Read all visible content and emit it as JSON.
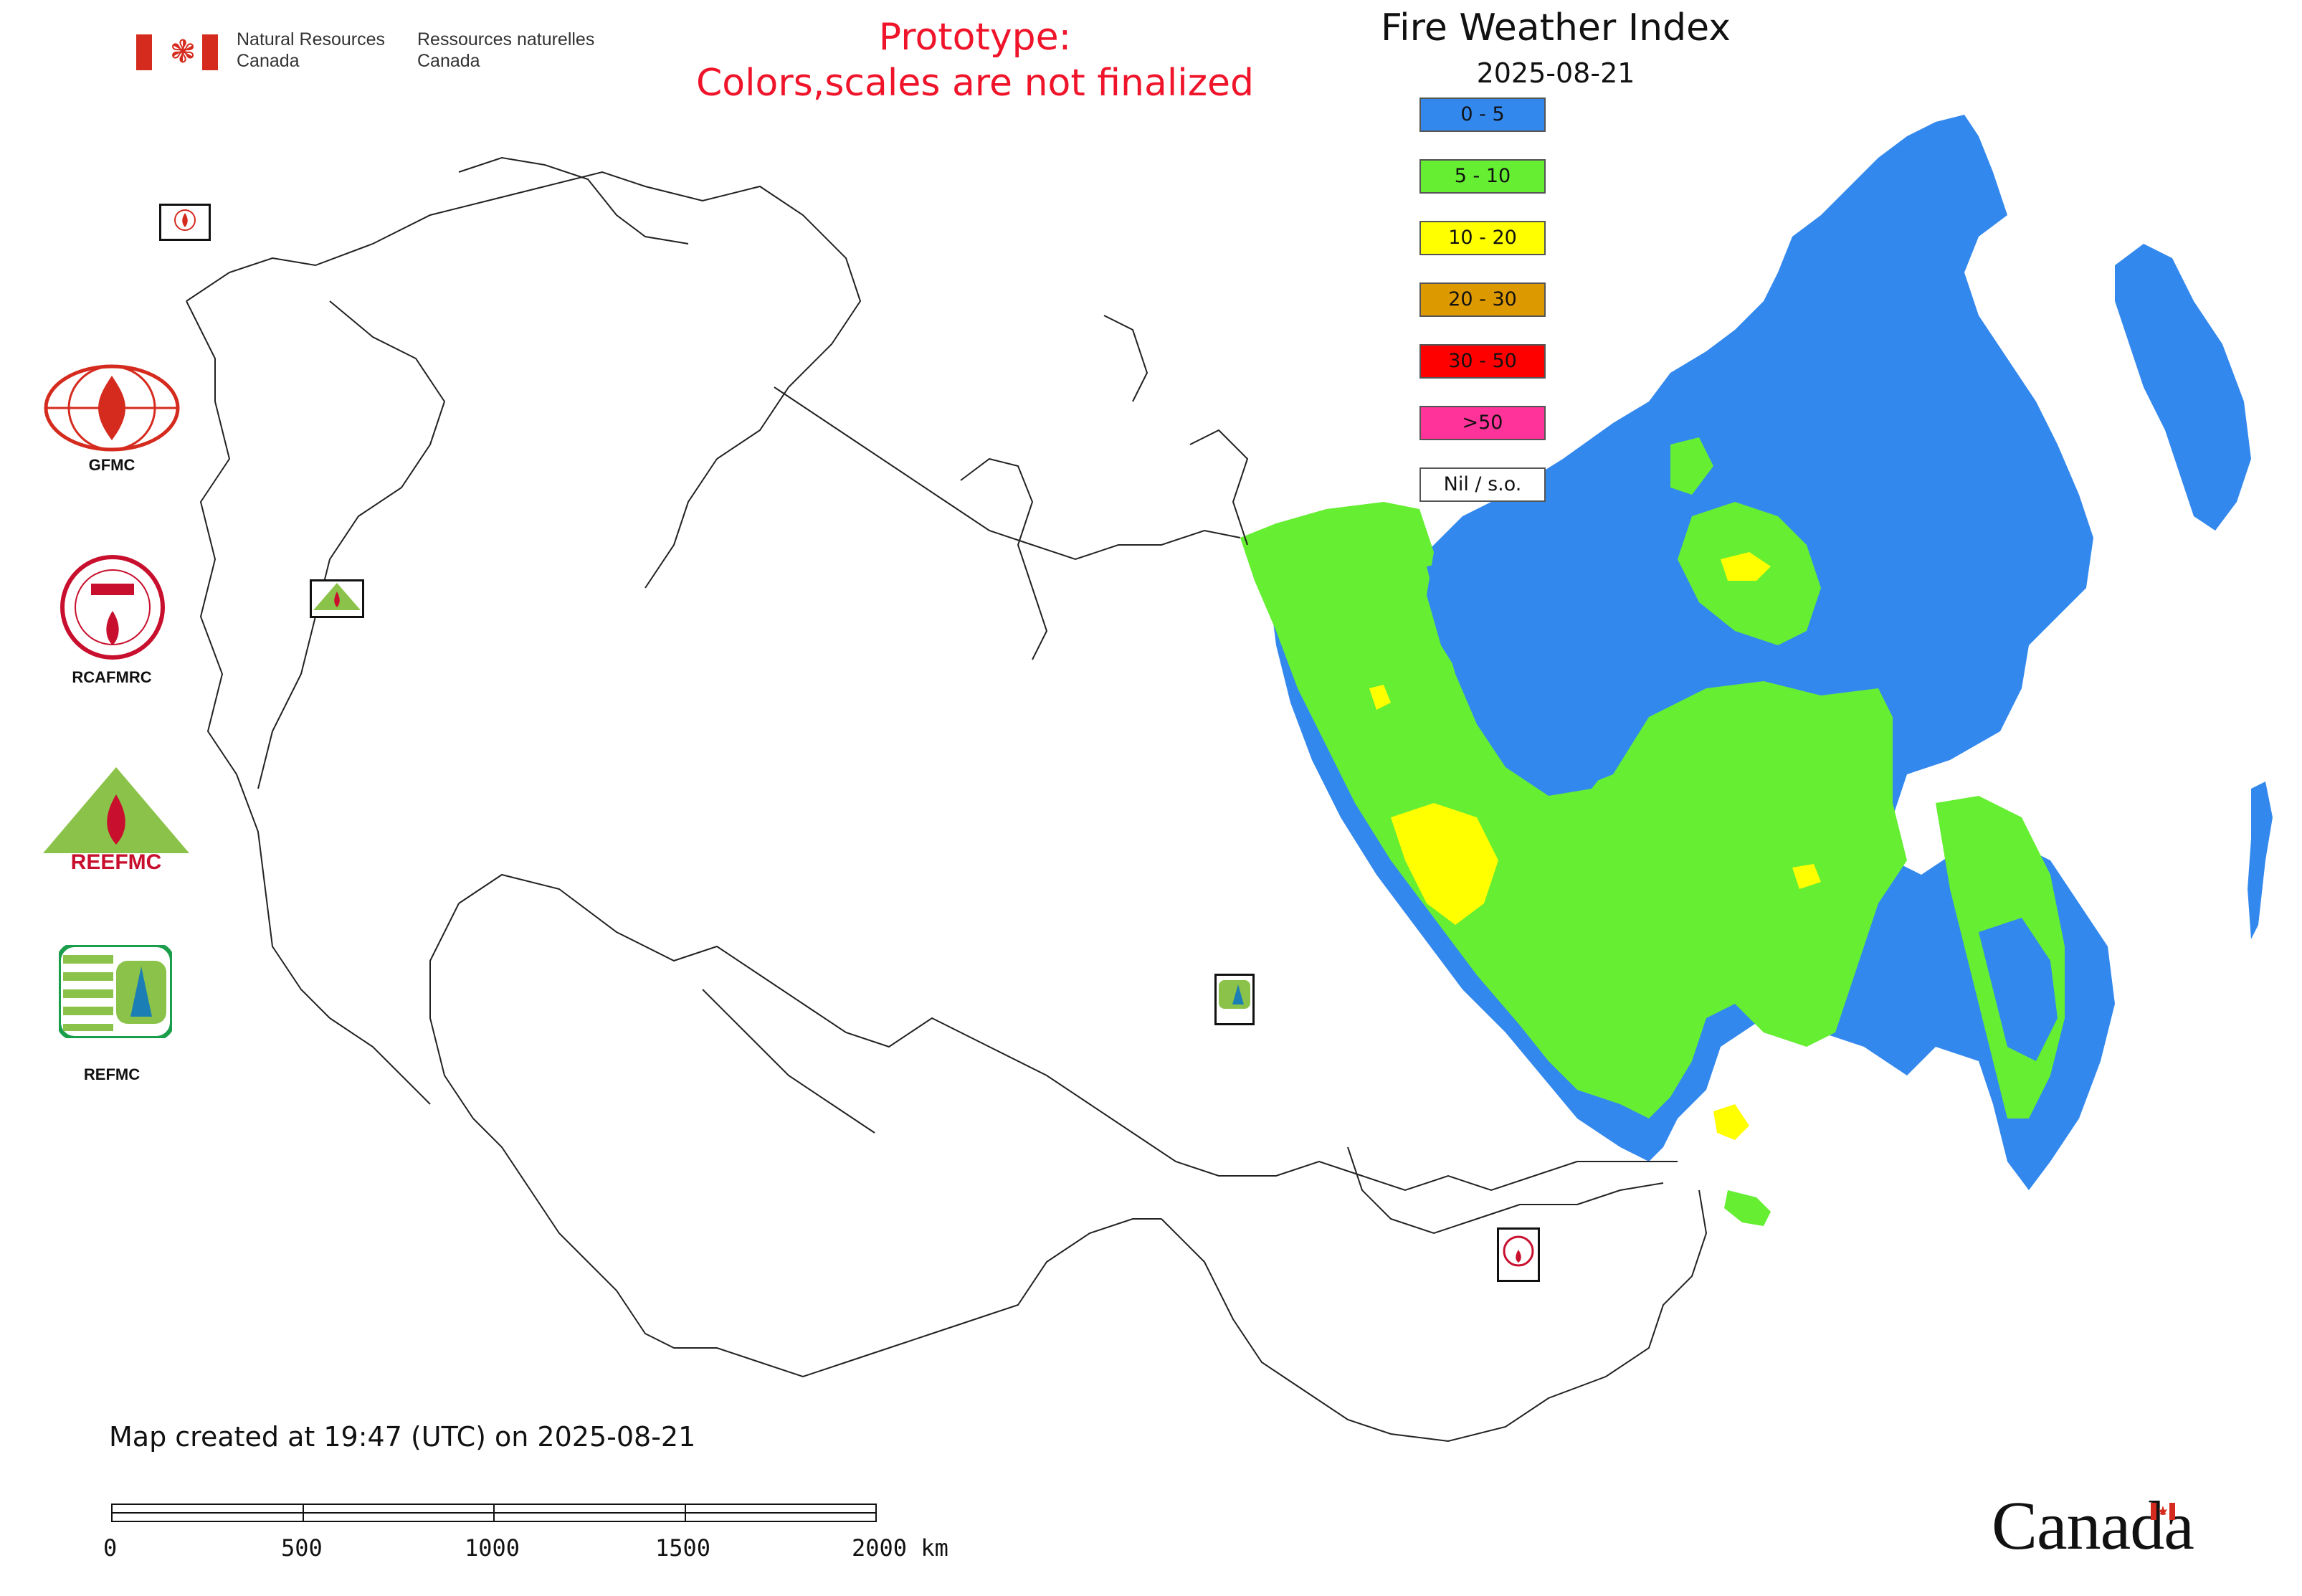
{
  "header": {
    "department_en_line1": "Natural Resources",
    "department_en_line2": "Canada",
    "department_fr_line1": "Ressources naturelles",
    "department_fr_line2": "Canada"
  },
  "notice": {
    "line1": "Prototype:",
    "line2": "Colors,scales are not finalized",
    "color": "#f0142a"
  },
  "map": {
    "title": "Fire Weather Index",
    "date": "2025-08-21",
    "created_note": "Map created at 19:47 (UTC) on 2025-08-21"
  },
  "legend": [
    {
      "label": "0 - 5",
      "color": "#3388ee"
    },
    {
      "label": "5 - 10",
      "color": "#66ee33"
    },
    {
      "label": "10 - 20",
      "color": "#ffff00"
    },
    {
      "label": "20 - 30",
      "color": "#dd9900"
    },
    {
      "label": "30 - 50",
      "color": "#ff0000"
    },
    {
      "label": ">50",
      "color": "#ff3399"
    },
    {
      "label": "Nil / s.o.",
      "color": "#ffffff"
    }
  ],
  "side_logos": [
    {
      "label": "GFMC",
      "icon": "gfmc-logo-icon"
    },
    {
      "label": "RCAFMRC",
      "icon": "rcafmrc-logo-icon"
    },
    {
      "label": "",
      "icon": "reefmc-logo-icon",
      "logo_text": "REEFMC"
    },
    {
      "label": "REFMC",
      "icon": "refmc-logo-icon"
    }
  ],
  "scale_bar": {
    "ticks": [
      "0",
      "500",
      "1000",
      "1500",
      "2000 km"
    ]
  },
  "wordmark": "Canada",
  "badges": {
    "gfmc": "GFMC",
    "reefmc": "REEFMC",
    "refmc": "REFMC",
    "rcafmrc": "RCAFMRC"
  }
}
